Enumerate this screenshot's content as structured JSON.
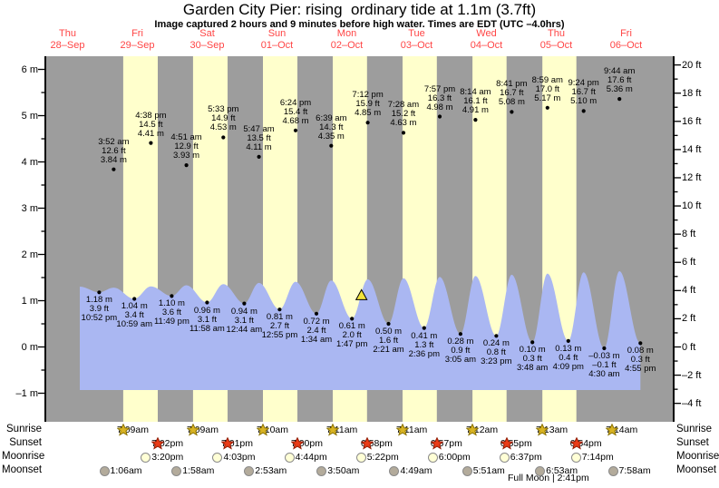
{
  "title": "Garden City Pier: rising  ordinary tide at 1.1m (3.7ft)",
  "subtitle": "Image captured 2 hours and 9 minutes before high water. Times are EDT (UTC –4.0hrs)",
  "days": [
    {
      "name": "Thu",
      "date": "28–Sep"
    },
    {
      "name": "Fri",
      "date": "29–Sep"
    },
    {
      "name": "Sat",
      "date": "30–Sep"
    },
    {
      "name": "Sun",
      "date": "01–Oct"
    },
    {
      "name": "Mon",
      "date": "02–Oct"
    },
    {
      "name": "Tue",
      "date": "03–Oct"
    },
    {
      "name": "Wed",
      "date": "04–Oct"
    },
    {
      "name": "Thu",
      "date": "05–Oct"
    },
    {
      "name": "Fri",
      "date": "06–Oct"
    }
  ],
  "chart_data": {
    "type": "area",
    "title": "Garden City Pier tide heights",
    "y_axis_left": {
      "unit": "m",
      "ticks": [
        "6 m",
        "5 m",
        "4 m",
        "3 m",
        "2 m",
        "1 m",
        "0 m",
        "–1 m"
      ],
      "values": [
        6,
        5,
        4,
        3,
        2,
        1,
        0,
        -1
      ]
    },
    "y_axis_right": {
      "unit": "ft",
      "ticks": [
        "20 ft",
        "18 ft",
        "16 ft",
        "14 ft",
        "12 ft",
        "10 ft",
        "8 ft",
        "6 ft",
        "4 ft",
        "2 ft",
        "0 ft",
        "–2 ft",
        "–4 ft"
      ],
      "values": [
        20,
        18,
        16,
        14,
        12,
        10,
        8,
        6,
        4,
        2,
        0,
        -2,
        -4
      ]
    },
    "high_tides": [
      {
        "day": 1,
        "time": "3:52 am",
        "ft": "12.6",
        "m": "3.84"
      },
      {
        "day": 1,
        "time": "4:38 pm",
        "ft": "14.5",
        "m": "4.41"
      },
      {
        "day": 2,
        "time": "4:51 am",
        "ft": "12.9",
        "m": "3.93"
      },
      {
        "day": 2,
        "time": "5:33 pm",
        "ft": "14.9",
        "m": "4.53"
      },
      {
        "day": 3,
        "time": "5:47 am",
        "ft": "13.5",
        "m": "4.11"
      },
      {
        "day": 3,
        "time": "6:24 pm",
        "ft": "15.4",
        "m": "4.68"
      },
      {
        "day": 4,
        "time": "6:39 am",
        "ft": "14.3",
        "m": "4.35"
      },
      {
        "day": 4,
        "time": "7:12 pm",
        "ft": "15.9",
        "m": "4.85"
      },
      {
        "day": 5,
        "time": "7:28 am",
        "ft": "15.2",
        "m": "4.63"
      },
      {
        "day": 5,
        "time": "7:57 pm",
        "ft": "16.3",
        "m": "4.98"
      },
      {
        "day": 6,
        "time": "8:14 am",
        "ft": "16.1",
        "m": "4.91"
      },
      {
        "day": 6,
        "time": "8:41 pm",
        "ft": "16.7",
        "m": "5.08"
      },
      {
        "day": 7,
        "time": "8:59 am",
        "ft": "17.0",
        "m": "5.17"
      },
      {
        "day": 7,
        "time": "9:24 pm",
        "ft": "16.7",
        "m": "5.10"
      },
      {
        "day": 8,
        "time": "9:44 am",
        "ft": "17.6",
        "m": "5.36"
      }
    ],
    "low_tides": [
      {
        "day": 0,
        "time": "10:52 pm",
        "ft": "3.9",
        "m": "1.18"
      },
      {
        "day": 1,
        "time": "10:59 am",
        "ft": "3.4",
        "m": "1.04"
      },
      {
        "day": 1,
        "time": "11:49 pm",
        "ft": "3.6",
        "m": "1.10"
      },
      {
        "day": 2,
        "time": "11:58 am",
        "ft": "3.1",
        "m": "0.96"
      },
      {
        "day": 3,
        "time": "12:44 am",
        "ft": "3.1",
        "m": "0.94"
      },
      {
        "day": 3,
        "time": "12:55 pm",
        "ft": "2.7",
        "m": "0.81"
      },
      {
        "day": 4,
        "time": "1:34 am",
        "ft": "2.4",
        "m": "0.72"
      },
      {
        "day": 4,
        "time": "1:47 pm",
        "ft": "2.0",
        "m": "0.61"
      },
      {
        "day": 5,
        "time": "2:21 am",
        "ft": "1.6",
        "m": "0.50"
      },
      {
        "day": 5,
        "time": "2:36 pm",
        "ft": "1.3",
        "m": "0.41"
      },
      {
        "day": 6,
        "time": "3:05 am",
        "ft": "0.9",
        "m": "0.28"
      },
      {
        "day": 6,
        "time": "3:23 pm",
        "ft": "0.8",
        "m": "0.24"
      },
      {
        "day": 7,
        "time": "3:48 am",
        "ft": "0.3",
        "m": "0.10"
      },
      {
        "day": 7,
        "time": "4:09 pm",
        "ft": "0.4",
        "m": "0.13"
      },
      {
        "day": 8,
        "time": "4:30 am",
        "ft": "–0.1",
        "m": "–0.03"
      },
      {
        "day": 8,
        "time": "4:55 pm",
        "ft": "0.3",
        "m": "0.08"
      }
    ],
    "current_marker": {
      "day": 4,
      "time": "5:03 pm",
      "m": 1.1
    },
    "colors": {
      "night_band": "#9d9d9d",
      "day_band": "#ffffcc",
      "water": "#aab7f2",
      "day_label": "#ff4545",
      "sunrise_star": "#d9b323",
      "sunset_star": "#ea3b17",
      "moonrise_fill": "#ffffd6",
      "moonset_fill": "#b3ab9b"
    }
  },
  "events": {
    "sunrise": {
      "label": "Sunrise",
      "items": [
        {
          "day": 1,
          "time": "7:09am"
        },
        {
          "day": 2,
          "time": "7:09am"
        },
        {
          "day": 3,
          "time": "7:10am"
        },
        {
          "day": 4,
          "time": "7:11am"
        },
        {
          "day": 5,
          "time": "7:11am"
        },
        {
          "day": 6,
          "time": "7:12am"
        },
        {
          "day": 7,
          "time": "7:13am"
        },
        {
          "day": 8,
          "time": "7:14am"
        }
      ]
    },
    "sunset": {
      "label": "Sunset",
      "items": [
        {
          "day": 1,
          "time": "7:02pm"
        },
        {
          "day": 2,
          "time": "7:01pm"
        },
        {
          "day": 3,
          "time": "7:00pm"
        },
        {
          "day": 4,
          "time": "6:58pm"
        },
        {
          "day": 5,
          "time": "6:57pm"
        },
        {
          "day": 6,
          "time": "6:55pm"
        },
        {
          "day": 7,
          "time": "6:54pm"
        }
      ]
    },
    "moonrise": {
      "label": "Moonrise",
      "items": [
        {
          "day": 1,
          "time": "3:20pm"
        },
        {
          "day": 2,
          "time": "4:03pm"
        },
        {
          "day": 3,
          "time": "4:44pm"
        },
        {
          "day": 4,
          "time": "5:22pm"
        },
        {
          "day": 5,
          "time": "6:00pm"
        },
        {
          "day": 6,
          "time": "6:37pm"
        },
        {
          "day": 7,
          "time": "7:14pm"
        }
      ]
    },
    "moonset": {
      "label": "Moonset",
      "items": [
        {
          "day": 1,
          "time": "1:06am"
        },
        {
          "day": 2,
          "time": "1:58am"
        },
        {
          "day": 3,
          "time": "2:53am"
        },
        {
          "day": 4,
          "time": "3:50am"
        },
        {
          "day": 5,
          "time": "4:49am"
        },
        {
          "day": 6,
          "time": "5:51am"
        },
        {
          "day": 7,
          "time": "6:53am"
        },
        {
          "day": 8,
          "time": "7:58am"
        }
      ]
    }
  },
  "full_moon": {
    "label": "Full Moon",
    "time": "2:41pm"
  }
}
